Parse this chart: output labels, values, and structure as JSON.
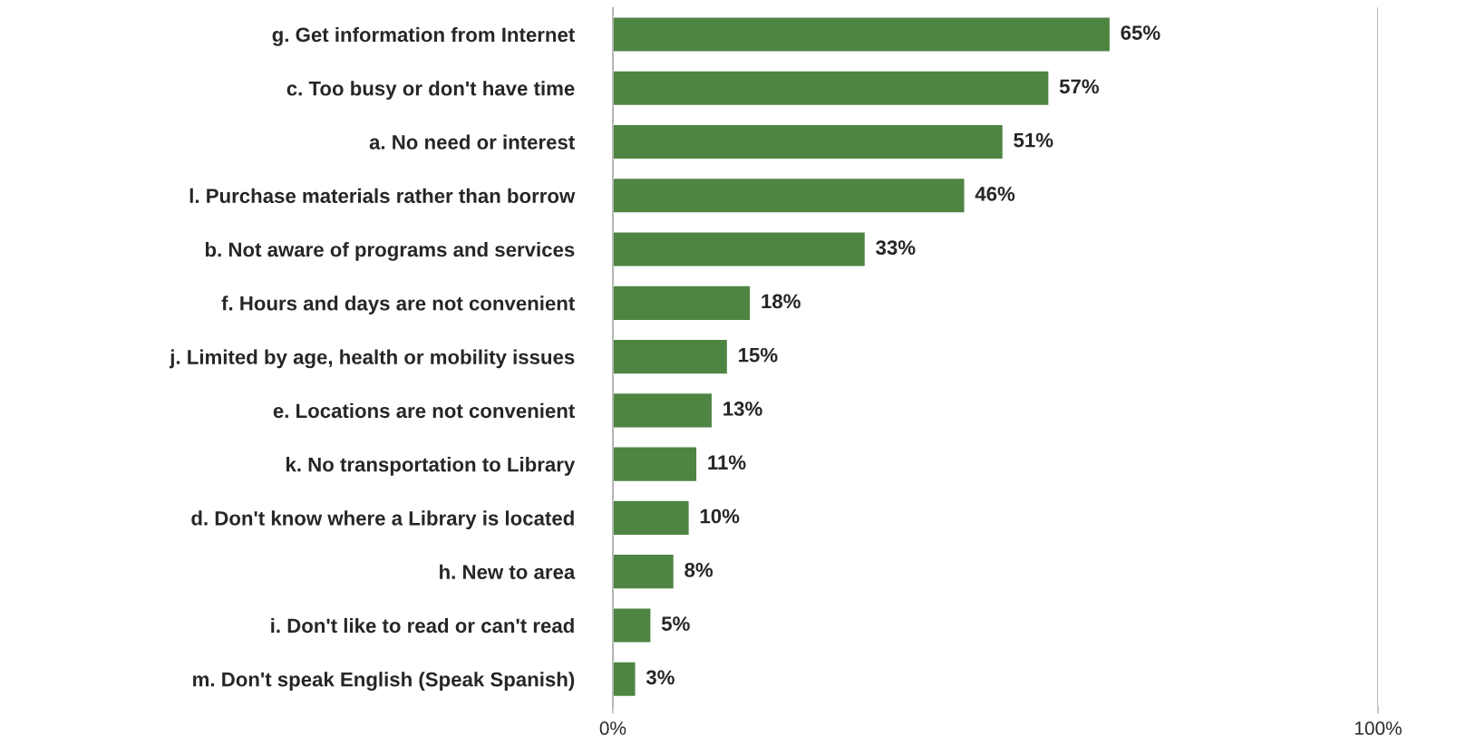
{
  "chart_data": {
    "type": "bar",
    "orientation": "horizontal",
    "categories": [
      "g. Get information from Internet",
      "c. Too busy or don't have time",
      "a. No need or interest",
      "l. Purchase materials rather than borrow",
      "b. Not aware of programs and services",
      "f. Hours and days are not convenient",
      "j. Limited by age, health or mobility issues",
      "e. Locations are not convenient",
      "k. No transportation to Library",
      "d. Don't know where a Library is located",
      "h. New to area",
      "i. Don't like to read or can't read",
      "m. Don't speak English (Speak Spanish)"
    ],
    "values": [
      65,
      57,
      51,
      46,
      33,
      18,
      15,
      13,
      11,
      10,
      8,
      5,
      3
    ],
    "value_labels": [
      "65%",
      "57%",
      "51%",
      "46%",
      "33%",
      "18%",
      "15%",
      "13%",
      "11%",
      "10%",
      "8%",
      "5%",
      "3%"
    ],
    "color": "#4e8542",
    "xlim": [
      0,
      100
    ],
    "xticks": [
      {
        "value": 0,
        "label": "0%"
      },
      {
        "value": 100,
        "label": "100%"
      }
    ],
    "grid": "x",
    "legend": false
  }
}
